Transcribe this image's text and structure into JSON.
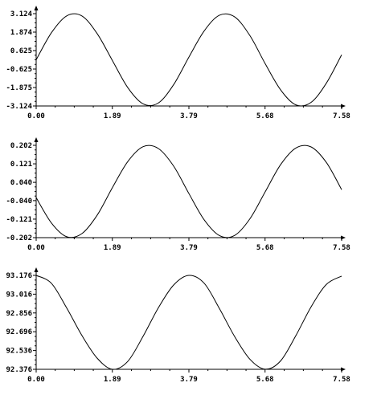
{
  "chart_data": [
    {
      "type": "line",
      "xlim": [
        0.0,
        7.58
      ],
      "ylim": [
        -3.124,
        3.124
      ],
      "x_tick_labels": [
        "0.00",
        "1.89",
        "3.79",
        "5.68",
        "7.58"
      ],
      "x_ticks": [
        0.0,
        1.89,
        3.79,
        5.68,
        7.58
      ],
      "y_tick_labels": [
        "3.124",
        "1.874",
        "0.625",
        "-0.625",
        "-1.875",
        "-3.124"
      ],
      "y_ticks": [
        3.124,
        1.874,
        0.625,
        -0.625,
        -1.875,
        -3.124
      ],
      "series": [
        {
          "x": [
            0.0,
            0.379,
            0.758,
            1.137,
            1.516,
            1.895,
            2.274,
            2.653,
            3.032,
            3.411,
            3.79,
            4.169,
            4.548,
            4.927,
            5.306,
            5.685,
            6.064,
            6.443,
            6.822,
            7.201,
            7.58
          ],
          "values": [
            0.0,
            1.837,
            2.974,
            2.964,
            1.762,
            -0.066,
            -1.883,
            -2.98,
            -2.92,
            -1.682,
            0.186,
            1.953,
            3.017,
            2.903,
            1.628,
            -0.272,
            -2.025,
            -3.05,
            -2.881,
            -1.579,
            0.341
          ]
        }
      ],
      "grid": false,
      "color": "#000000"
    },
    {
      "type": "line",
      "xlim": [
        0.0,
        7.58
      ],
      "ylim": [
        -0.202,
        0.202
      ],
      "x_tick_labels": [
        "0.00",
        "1.89",
        "3.79",
        "5.68",
        "7.58"
      ],
      "x_ticks": [
        0.0,
        1.89,
        3.79,
        5.68,
        7.58
      ],
      "y_tick_labels": [
        "0.202",
        "0.121",
        "0.040",
        "-0.040",
        "-0.121",
        "-0.202"
      ],
      "y_ticks": [
        0.202,
        0.121,
        0.04,
        -0.04,
        -0.121,
        -0.202
      ],
      "series": [
        {
          "x": [
            0.0,
            0.379,
            0.758,
            1.137,
            1.516,
            1.895,
            2.274,
            2.653,
            3.032,
            3.411,
            3.79,
            4.169,
            4.548,
            4.927,
            5.306,
            5.685,
            6.064,
            6.443,
            6.822,
            7.201,
            7.58
          ],
          "values": [
            -0.027,
            -0.138,
            -0.198,
            -0.184,
            -0.103,
            0.018,
            0.131,
            0.196,
            0.188,
            0.111,
            -0.009,
            -0.124,
            -0.193,
            -0.192,
            -0.119,
            -0.001,
            0.117,
            0.19,
            0.195,
            0.127,
            0.008
          ]
        }
      ],
      "grid": false,
      "color": "#000000"
    },
    {
      "type": "line",
      "xlim": [
        0.0,
        7.58
      ],
      "ylim": [
        92.376,
        93.176
      ],
      "x_tick_labels": [
        "0.00",
        "1.89",
        "3.79",
        "5.68",
        "7.58"
      ],
      "x_ticks": [
        0.0,
        1.89,
        3.79,
        5.68,
        7.58
      ],
      "y_tick_labels": [
        "93.176",
        "93.016",
        "92.856",
        "92.696",
        "92.536",
        "92.376"
      ],
      "y_ticks": [
        93.176,
        93.016,
        92.856,
        92.696,
        92.536,
        92.376
      ],
      "series": [
        {
          "x": [
            0.0,
            0.379,
            0.758,
            1.137,
            1.516,
            1.895,
            2.274,
            2.653,
            3.032,
            3.411,
            3.79,
            4.169,
            4.548,
            4.927,
            5.306,
            5.685,
            6.064,
            6.443,
            6.822,
            7.201,
            7.58
          ],
          "values": [
            93.176,
            93.108,
            92.898,
            92.663,
            92.47,
            92.376,
            92.444,
            92.657,
            92.9,
            93.094,
            93.176,
            93.109,
            92.893,
            92.654,
            92.461,
            92.377,
            92.447,
            92.662,
            92.908,
            93.099,
            93.17
          ]
        }
      ],
      "grid": false,
      "color": "#000000"
    }
  ]
}
